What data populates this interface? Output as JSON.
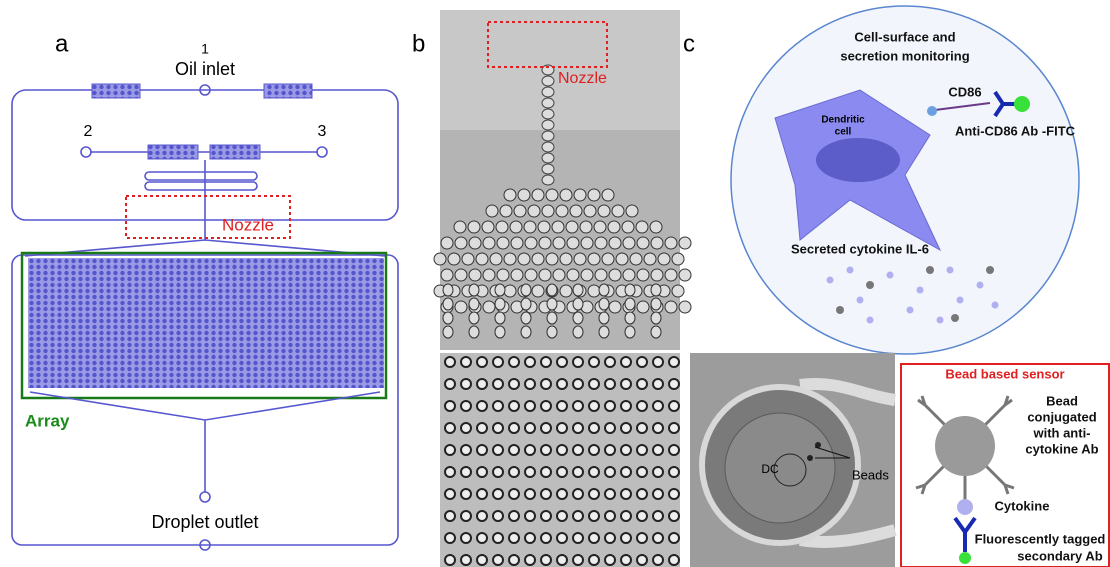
{
  "panel_a": {
    "label": "a",
    "inlet_number": "1",
    "inlet_label": "Oil inlet",
    "port_left": "2",
    "port_right": "3",
    "nozzle_label": "Nozzle",
    "array_label": "Array",
    "outlet_label": "Droplet outlet"
  },
  "panel_b": {
    "label": "b",
    "nozzle_label": "Nozzle"
  },
  "panel_c": {
    "label": "c",
    "title_lines": [
      "Cell-surface and",
      "secretion monitoring"
    ],
    "marker_label": "CD86",
    "cell_label_lines": [
      "Dendritic",
      "cell"
    ],
    "antibody_label": "Anti-CD86 Ab -FITC",
    "cytokine_label": "Secreted cytokine IL-6",
    "beads_label": "Beads",
    "dc_label": "DC",
    "sensor_title": "Bead based sensor",
    "bead_label_lines": [
      "Bead",
      "conjugated",
      "with anti-",
      "cytokine Ab"
    ],
    "cytokine_item": "Cytokine",
    "secondary_lines": [
      "Fluorescently tagged",
      "secondary Ab"
    ]
  }
}
